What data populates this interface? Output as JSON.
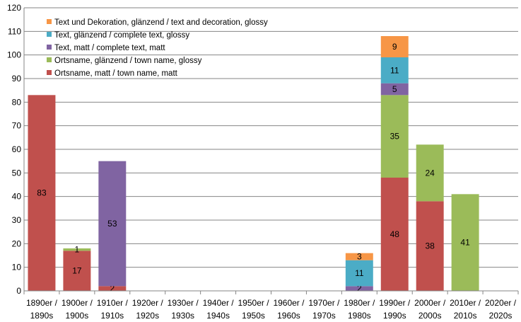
{
  "chart_data": {
    "type": "bar",
    "stacked": true,
    "title": "",
    "xlabel": "",
    "ylabel": "",
    "ylim": [
      0,
      120
    ],
    "y_ticks": [
      0,
      10,
      20,
      30,
      40,
      50,
      60,
      70,
      80,
      90,
      100,
      110,
      120
    ],
    "grid": true,
    "legend_position": "top-left (inside plot)",
    "categories": [
      [
        "1890er /",
        "1890s"
      ],
      [
        "1900er /",
        "1900s"
      ],
      [
        "1910er /",
        "1910s"
      ],
      [
        "1920er /",
        "1920s"
      ],
      [
        "1930er /",
        "1930s"
      ],
      [
        "1940er /",
        "1940s"
      ],
      [
        "1950er /",
        "1950s"
      ],
      [
        "1960er /",
        "1960s"
      ],
      [
        "1970er /",
        "1970s"
      ],
      [
        "1980er /",
        "1980s"
      ],
      [
        "1990er /",
        "1990s"
      ],
      [
        "2000er /",
        "2000s"
      ],
      [
        "2010er /",
        "2010s"
      ],
      [
        "2020er /",
        "2020s"
      ]
    ],
    "series": [
      {
        "name": "Ortsname, matt / town name, matt",
        "color": "#c0504d",
        "values": [
          83,
          17,
          2,
          0,
          0,
          0,
          0,
          0,
          0,
          0,
          48,
          38,
          0,
          0
        ],
        "labels": [
          "83",
          "17",
          "2",
          "",
          "",
          "",
          "",
          "",
          "",
          "",
          "48",
          "38",
          "",
          ""
        ]
      },
      {
        "name": "Ortsname, glänzend / town name, glossy",
        "color": "#9bbb59",
        "values": [
          0,
          1,
          0,
          0,
          0,
          0,
          0,
          0,
          0,
          0,
          35,
          24,
          41,
          0
        ],
        "labels": [
          "",
          "1",
          "",
          "",
          "",
          "",
          "",
          "",
          "",
          "",
          "35",
          "24",
          "41",
          ""
        ]
      },
      {
        "name": "Text, matt / complete text, matt",
        "color": "#8064a2",
        "values": [
          0,
          0,
          53,
          0,
          0,
          0,
          0,
          0,
          0,
          2,
          5,
          0,
          0,
          0
        ],
        "labels": [
          "",
          "",
          "53",
          "",
          "",
          "",
          "",
          "",
          "",
          "2",
          "5",
          "",
          "",
          ""
        ]
      },
      {
        "name": "Text, glänzend / complete text, glossy",
        "color": "#4bacc6",
        "values": [
          0,
          0,
          0,
          0,
          0,
          0,
          0,
          0,
          0,
          11,
          11,
          0,
          0,
          0
        ],
        "labels": [
          "",
          "",
          "",
          "",
          "",
          "",
          "",
          "",
          "",
          "11",
          "11",
          "",
          "",
          ""
        ]
      },
      {
        "name": "Text und Dekoration, glänzend / text and decoration, glossy",
        "color": "#f79646",
        "values": [
          0,
          0,
          0,
          0,
          0,
          0,
          0,
          0,
          0,
          3,
          9,
          0,
          0,
          0
        ],
        "labels": [
          "",
          "",
          "",
          "",
          "",
          "",
          "",
          "",
          "",
          "3",
          "9",
          "",
          "",
          ""
        ]
      }
    ],
    "legend_order": [
      4,
      3,
      2,
      1,
      0
    ]
  }
}
